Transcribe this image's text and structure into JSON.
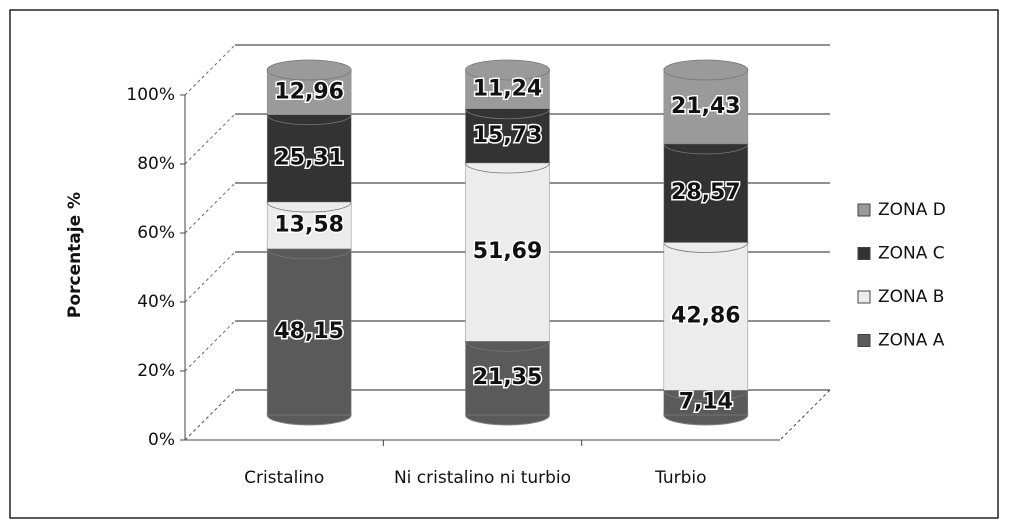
{
  "chart_data": {
    "type": "stacked-bar-3d",
    "y_label": "Porcentaje %",
    "categories": [
      "Cristalino",
      "Ni cristalino ni turbio",
      "Turbio"
    ],
    "series": [
      {
        "name": "ZONA A",
        "color": "#5a5a5a",
        "values": [
          48.15,
          21.35,
          7.14
        ],
        "value_labels": [
          "48,15",
          "21,35",
          "7,14"
        ]
      },
      {
        "name": "ZONA B",
        "color": "#ececec",
        "values": [
          13.58,
          51.69,
          42.86
        ],
        "value_labels": [
          "13,58",
          "51,69",
          "42,86"
        ]
      },
      {
        "name": "ZONA C",
        "color": "#333333",
        "values": [
          25.31,
          15.73,
          28.57
        ],
        "value_labels": [
          "25,31",
          "15,73",
          "28,57"
        ]
      },
      {
        "name": "ZONA D",
        "color": "#9a9a9a",
        "values": [
          12.96,
          11.24,
          21.43
        ],
        "value_labels": [
          "12,96",
          "11,24",
          "21,43"
        ]
      }
    ],
    "ylim": [
      0,
      100
    ],
    "yticks": [
      {
        "value": 0,
        "label": "0%"
      },
      {
        "value": 20,
        "label": "20%"
      },
      {
        "value": 40,
        "label": "40%"
      },
      {
        "value": 60,
        "label": "60%"
      },
      {
        "value": 80,
        "label": "80%"
      },
      {
        "value": 100,
        "label": "100%"
      }
    ],
    "grid": true,
    "legend": "right"
  }
}
